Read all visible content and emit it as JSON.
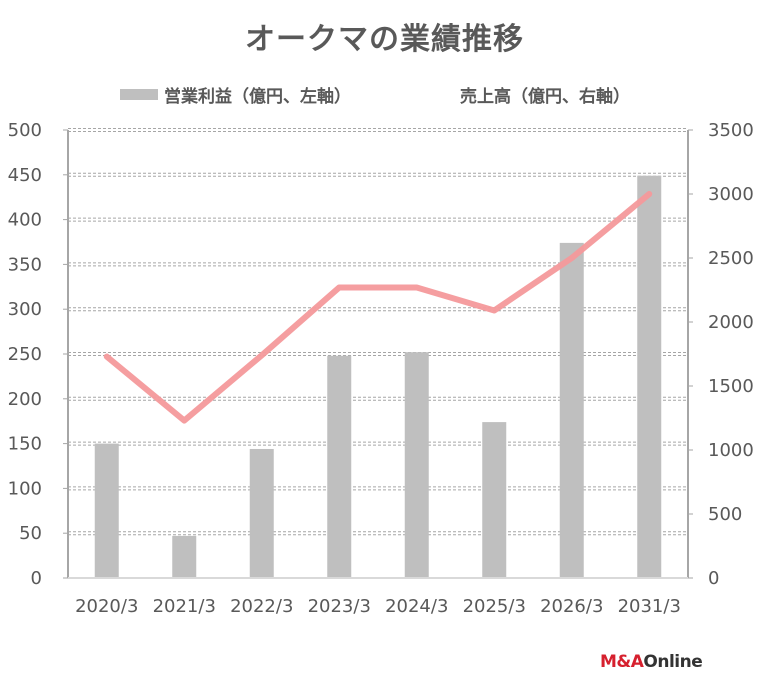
{
  "title": "オークマの業績推移",
  "logo": {
    "part1": "M&A",
    "part2": "Online"
  },
  "colors": {
    "bar": "#bfbfbf",
    "line": "#f4999b",
    "grid": "#a6a6a6",
    "axis": "#a6a6a6",
    "text": "#595959"
  },
  "chart_data": {
    "type": "bar+line",
    "title": "オークマの業績推移",
    "categories": [
      "2020/3",
      "2021/3",
      "2022/3",
      "2023/3",
      "2024/3",
      "2025/3",
      "2026/3",
      "2031/3"
    ],
    "series": [
      {
        "name": "営業利益（億円、左軸）",
        "type": "bar",
        "axis": "left",
        "values": [
          150,
          47,
          144,
          248,
          252,
          174,
          374,
          449
        ]
      },
      {
        "name": "売上高（億円、右軸）",
        "type": "line",
        "axis": "right",
        "values": [
          1730,
          1230,
          1740,
          2270,
          2270,
          2090,
          2500,
          3000
        ]
      }
    ],
    "left_axis": {
      "min": 0,
      "max": 500,
      "step": 50,
      "ticks": [
        "0",
        "50",
        "100",
        "150",
        "200",
        "250",
        "300",
        "350",
        "400",
        "450",
        "500"
      ]
    },
    "right_axis": {
      "min": 0,
      "max": 3500,
      "step": 500,
      "ticks": [
        "0",
        "500",
        "1000",
        "1500",
        "2000",
        "2500",
        "3000",
        "3500"
      ]
    },
    "grid": true,
    "legend_position": "top"
  }
}
